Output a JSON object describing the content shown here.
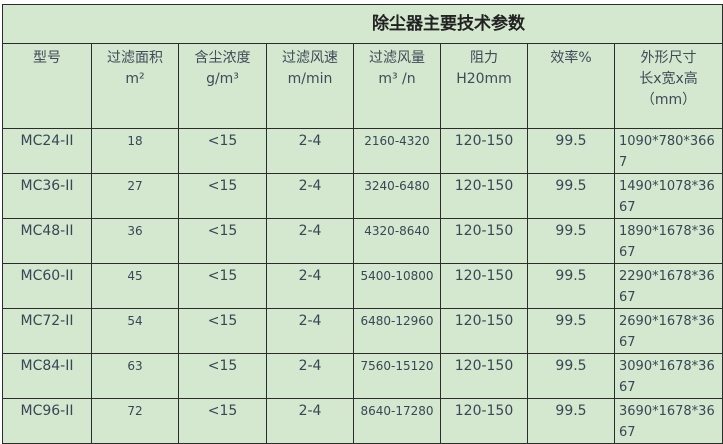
{
  "title": "除尘器主要技术参数",
  "headers": [
    [
      "型号"
    ],
    [
      "过滤面积",
      "m²"
    ],
    [
      "含尘浓度",
      "g/m³"
    ],
    [
      "过滤风速",
      "m/min"
    ],
    [
      "过滤风量",
      "m³ /n"
    ],
    [
      "阻力",
      "H20mm"
    ],
    [
      "效率%"
    ],
    [
      "外形尺寸",
      "长x宽x高",
      "（mm）"
    ]
  ],
  "rows": [
    [
      "MC24-II",
      "18",
      "<15",
      "2-4",
      "2160-4320",
      "120-150",
      "99.5",
      "1090*780*3667"
    ],
    [
      "MC36-II",
      "27",
      "<15",
      "2-4",
      "3240-6480",
      "120-150",
      "99.5",
      "1490*1078*3667"
    ],
    [
      "MC48-II",
      "36",
      "<15",
      "2-4",
      "4320-8640",
      "120-150",
      "99.5",
      "1890*1678*3667"
    ],
    [
      "MC60-II",
      "45",
      "<15",
      "2-4",
      "5400-10800",
      "120-150",
      "99.5",
      "2290*1678*3667"
    ],
    [
      "MC72-II",
      "54",
      "<15",
      "2-4",
      "6480-12960",
      "120-150",
      "99.5",
      "2690*1678*3667"
    ],
    [
      "MC84-II",
      "63",
      "<15",
      "2-4",
      "7560-15120",
      "120-150",
      "99.5",
      "3090*1678*3667"
    ],
    [
      "MC96-II",
      "72",
      "<15",
      "2-4",
      "8640-17280",
      "120-150",
      "99.5",
      "3690*1678*3667"
    ]
  ],
  "colors": {
    "background": "#d3e8cf",
    "text": "#3a4656",
    "border": "#2c2c2c"
  }
}
